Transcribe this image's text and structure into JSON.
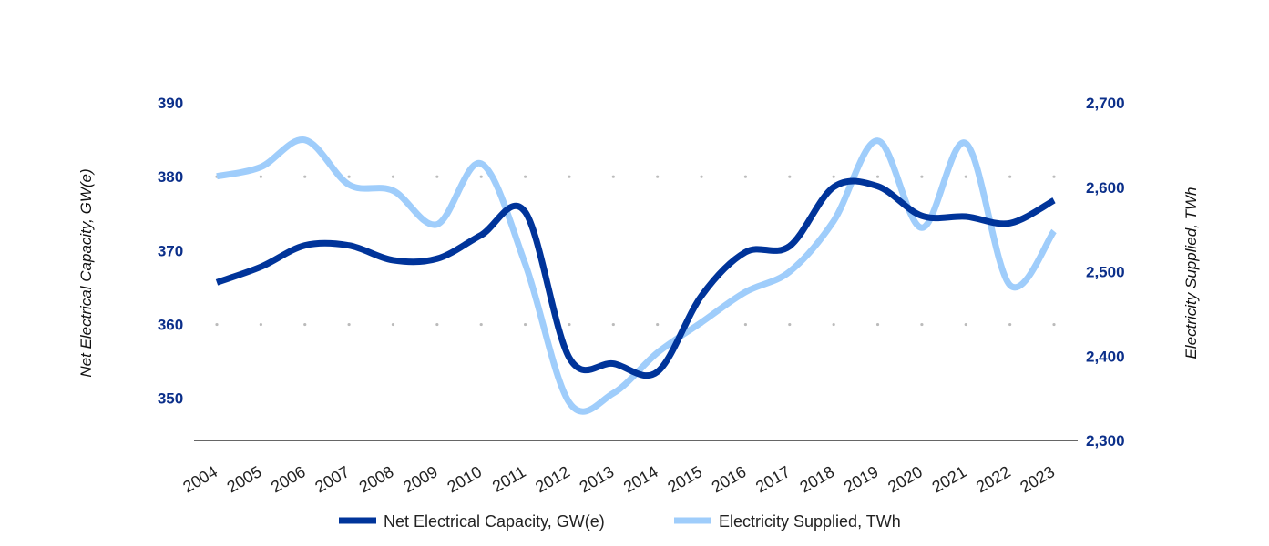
{
  "chart_data": {
    "type": "line",
    "title": "",
    "categories": [
      "2004",
      "2005",
      "2006",
      "2007",
      "2008",
      "2009",
      "2010",
      "2011",
      "2012",
      "2013",
      "2014",
      "2015",
      "2016",
      "2017",
      "2018",
      "2019",
      "2020",
      "2021",
      "2022",
      "2023"
    ],
    "series": [
      {
        "name": "Net Electrical Capacity, GW(e)",
        "axis": "left",
        "color": "#00349a",
        "values": [
          365.7,
          367.8,
          370.7,
          370.7,
          368.7,
          368.9,
          372.1,
          375.2,
          355.5,
          354.7,
          353.6,
          363.9,
          369.8,
          370.6,
          378.6,
          378.7,
          374.7,
          374.6,
          373.7,
          376.8
        ]
      },
      {
        "name": "Electricity Supplied, TWh",
        "axis": "right",
        "color": "#9fcdfb",
        "values": [
          2613,
          2624,
          2656,
          2603,
          2596,
          2556,
          2628,
          2509,
          2345,
          2356,
          2404,
          2440,
          2476,
          2500,
          2560,
          2655,
          2552,
          2652,
          2484,
          2548
        ]
      }
    ],
    "y_left": {
      "label": "Net Electrical Capacity, GW(e)",
      "ticks": [
        "390",
        "380",
        "370",
        "360",
        "350"
      ],
      "range": [
        344.3,
        390
      ]
    },
    "y_right": {
      "label": "Electricity Supplied, TWh",
      "ticks": [
        "2,700",
        "2,600",
        "2,500",
        "2,400",
        "2,300"
      ],
      "range": [
        2300,
        2700
      ]
    },
    "gridlines": "dotted at 380 and 360",
    "legend_position": "bottom-center",
    "colors": {
      "axis_text": "#0b2f8a",
      "baseline": "#333333",
      "grid": "#bbbbbb"
    }
  }
}
